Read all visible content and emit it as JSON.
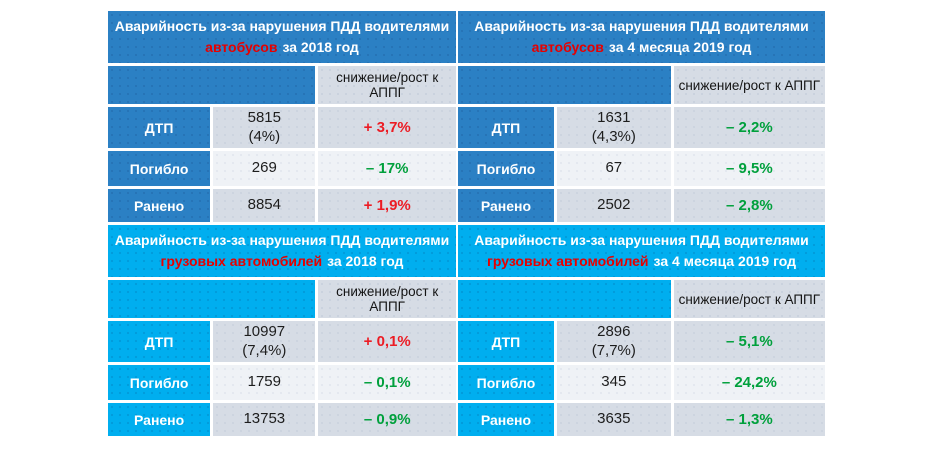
{
  "colors": {
    "steel_blue": "#2B80C4",
    "bright_cyan": "#00AEEF",
    "row_grey": "#D6DCE5",
    "row_light": "#EFF2F6",
    "increase_red": "#EC1C24",
    "decrease_green": "#00A03C",
    "header_highlight_red": "#E60000"
  },
  "tables": [
    {
      "name": "buses-2018",
      "header": {
        "line1": "Аварийность из-за нарушения ПДД водителями",
        "highlight": "автобусов",
        "suffix": "за 2018 год"
      },
      "change_header": "снижение/рост к АППГ",
      "rows": [
        {
          "label": "ДТП",
          "value": "5815",
          "note": "(4%)",
          "change": "+ 3,7%",
          "trend": "up"
        },
        {
          "label": "Погибло",
          "value": "269",
          "note": "",
          "change": "– 17%",
          "trend": "down"
        },
        {
          "label": "Ранено",
          "value": "8854",
          "note": "",
          "change": "+ 1,9%",
          "trend": "up"
        }
      ]
    },
    {
      "name": "buses-4months-2019",
      "header": {
        "line1": "Аварийность из-за нарушения ПДД водителями",
        "highlight": "автобусов",
        "suffix": "за 4 месяца 2019 год"
      },
      "change_header": "снижение/рост к АППГ",
      "rows": [
        {
          "label": "ДТП",
          "value": "1631",
          "note": "(4,3%)",
          "change": "– 2,2%",
          "trend": "down"
        },
        {
          "label": "Погибло",
          "value": "67",
          "note": "",
          "change": "– 9,5%",
          "trend": "down"
        },
        {
          "label": "Ранено",
          "value": "2502",
          "note": "",
          "change": "– 2,8%",
          "trend": "down"
        }
      ]
    },
    {
      "name": "trucks-2018",
      "header": {
        "line1": "Аварийность из-за нарушения ПДД водителями",
        "highlight": "грузовых автомобилей",
        "suffix": "за 2018 год"
      },
      "change_header": "снижение/рост к АППГ",
      "rows": [
        {
          "label": "ДТП",
          "value": "10997",
          "note": "(7,4%)",
          "change": "+ 0,1%",
          "trend": "up"
        },
        {
          "label": "Погибло",
          "value": "1759",
          "note": "",
          "change": "– 0,1%",
          "trend": "down"
        },
        {
          "label": "Ранено",
          "value": "13753",
          "note": "",
          "change": "– 0,9%",
          "trend": "down"
        }
      ]
    },
    {
      "name": "trucks-4months-2019",
      "header": {
        "line1": "Аварийность из-за нарушения ПДД водителями",
        "highlight": "грузовых автомобилей",
        "suffix": "за 4 месяца 2019 год"
      },
      "change_header": "снижение/рост к АППГ",
      "rows": [
        {
          "label": "ДТП",
          "value": "2896",
          "note": "(7,7%)",
          "change": "– 5,1%",
          "trend": "down"
        },
        {
          "label": "Погибло",
          "value": "345",
          "note": "",
          "change": "– 24,2%",
          "trend": "down"
        },
        {
          "label": "Ранено",
          "value": "3635",
          "note": "",
          "change": "– 1,3%",
          "trend": "down"
        }
      ]
    }
  ]
}
